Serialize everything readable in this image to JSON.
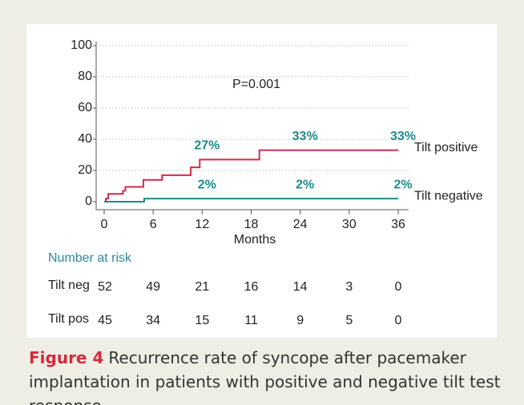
{
  "chart_data": {
    "type": "line",
    "step": "post",
    "annotation": "P=0.001",
    "xlabel": "Months",
    "xlim": [
      0,
      36
    ],
    "xticks": [
      0,
      6,
      12,
      18,
      24,
      30,
      36
    ],
    "ylim": [
      0,
      100
    ],
    "yticks": [
      0,
      20,
      40,
      60,
      80,
      100
    ],
    "grid": true,
    "series": [
      {
        "name": "Tilt positive",
        "color": "#d42a4c",
        "x": [
          0,
          0.2,
          0.5,
          2.3,
          2.6,
          4.8,
          7.1,
          10.6,
          11.7,
          19,
          36
        ],
        "values": [
          0,
          2,
          5,
          7,
          9.5,
          14,
          17,
          22,
          27,
          33,
          33
        ],
        "point_labels": {
          "x": [
            12,
            24,
            36
          ],
          "values": [
            27,
            33,
            33
          ],
          "value_labels": [
            "27%",
            "33%",
            "33%"
          ]
        }
      },
      {
        "name": "Tilt negative",
        "color": "#1f8a8a",
        "x": [
          0,
          4.9,
          36
        ],
        "values": [
          0,
          2,
          2
        ],
        "point_labels": {
          "x": [
            12,
            24,
            36
          ],
          "values": [
            2,
            2,
            2
          ],
          "value_labels": [
            "2%",
            "2%",
            "2%"
          ]
        }
      }
    ]
  },
  "risk_table": {
    "title": "Number at risk",
    "rows": [
      {
        "label": "Tilt neg",
        "values": [
          52,
          49,
          21,
          16,
          14,
          3,
          0
        ]
      },
      {
        "label": "Tilt pos",
        "values": [
          45,
          34,
          15,
          11,
          9,
          5,
          0
        ]
      }
    ]
  },
  "caption": {
    "label": "Figure 4",
    "text": "Recurrence rate of syncope after pacemaker implantation in patients with positive and negative tilt test response."
  }
}
